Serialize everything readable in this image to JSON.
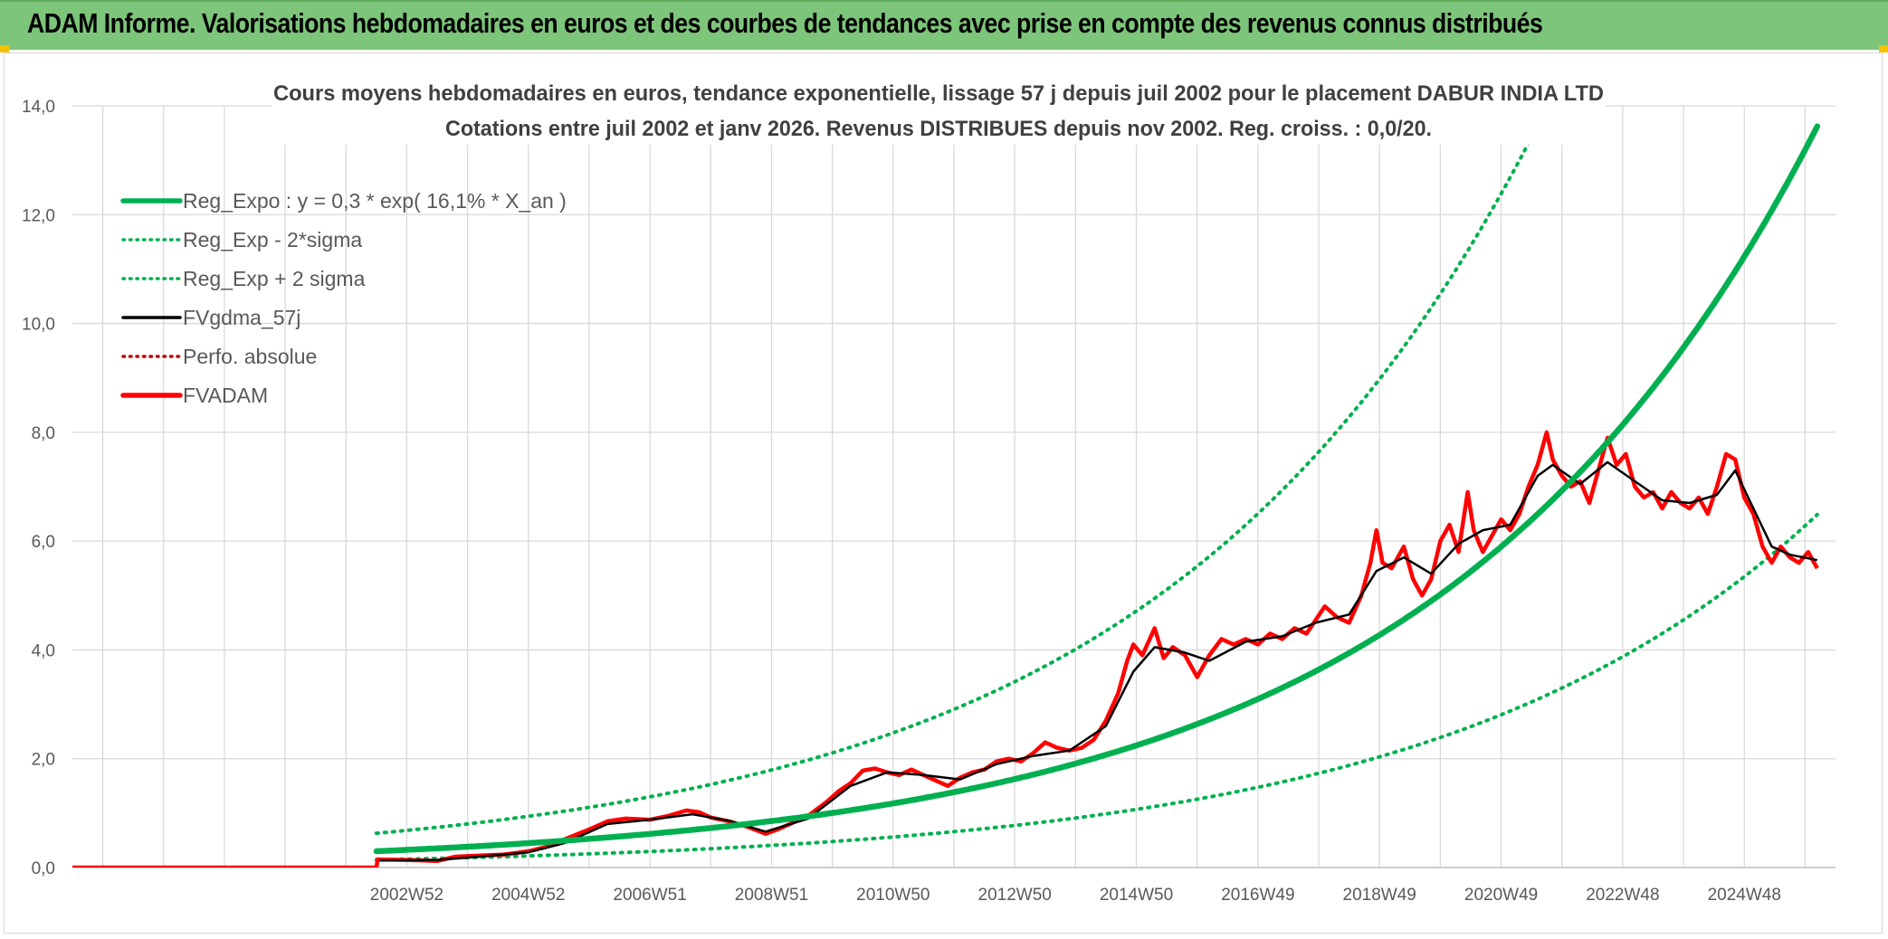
{
  "header": {
    "title": "ADAM Informe. Valorisations hebdomadaires en euros et des courbes de tendances avec prise en compte des revenus connus distribués"
  },
  "colors": {
    "header_bg": "#7dc57a",
    "reg_green": "#00b050",
    "gdma_black": "#000000",
    "adam_red": "#ff0000",
    "perfo_red": "#c00000",
    "grid": "#d9d9d9"
  },
  "chart_data": {
    "type": "line",
    "title_line1": "Cours moyens hebdomadaires en euros, tendance exponentielle, lissage 57 j depuis juil 2002 pour le placement DABUR INDIA LTD",
    "title_line2": "Cotations entre juil 2002 et janv 2026. Revenus DISTRIBUES depuis nov 2002. Reg. croiss. : 0,0/20.",
    "xlabel": "",
    "ylabel": "",
    "ylim": [
      0,
      14
    ],
    "y_ticks": [
      "0,0",
      "2,0",
      "4,0",
      "6,0",
      "8,0",
      "10,0",
      "12,0",
      "14,0"
    ],
    "x_range": [
      1997.5,
      2026.5
    ],
    "x_tick_labels": [
      "2002W52",
      "2004W52",
      "2006W51",
      "2008W51",
      "2010W50",
      "2012W50",
      "2014W50",
      "2016W49",
      "2018W49",
      "2020W49",
      "2022W48",
      "2024W48"
    ],
    "x_tick_years": [
      2003.0,
      2005.0,
      2007.0,
      2009.0,
      2011.0,
      2013.0,
      2015.0,
      2017.0,
      2019.0,
      2021.0,
      2023.0,
      2025.0
    ],
    "regression": {
      "a": 0.3,
      "rate": 0.161,
      "sigma_factor": 2.1,
      "start_year": 2002.5,
      "end_year": 2026.2
    },
    "legend": [
      {
        "label": "Reg_Expo : y = 0,3 * exp( 16,1% *  X_an )",
        "color": "#00b050",
        "style": "solid-thick"
      },
      {
        "label": "Reg_Exp - 2*sigma",
        "color": "#00b050",
        "style": "dotted"
      },
      {
        "label": "Reg_Exp + 2 sigma",
        "color": "#00b050",
        "style": "dotted"
      },
      {
        "label": "FVgdma_57j",
        "color": "#000000",
        "style": "solid"
      },
      {
        "label": "Perfo. absolue",
        "color": "#c00000",
        "style": "dotted"
      },
      {
        "label": "FVADAM",
        "color": "#ff0000",
        "style": "solid-thick"
      }
    ],
    "series": [
      {
        "name": "FVADAM",
        "points": [
          [
            1997.5,
            0.0
          ],
          [
            2002.5,
            0.0
          ],
          [
            2002.52,
            0.15
          ],
          [
            2003.0,
            0.14
          ],
          [
            2003.5,
            0.12
          ],
          [
            2003.8,
            0.2
          ],
          [
            2004.2,
            0.22
          ],
          [
            2004.6,
            0.24
          ],
          [
            2005.0,
            0.3
          ],
          [
            2005.3,
            0.38
          ],
          [
            2005.6,
            0.52
          ],
          [
            2006.0,
            0.7
          ],
          [
            2006.3,
            0.85
          ],
          [
            2006.6,
            0.9
          ],
          [
            2007.0,
            0.88
          ],
          [
            2007.3,
            0.95
          ],
          [
            2007.6,
            1.05
          ],
          [
            2007.8,
            1.02
          ],
          [
            2008.0,
            0.92
          ],
          [
            2008.3,
            0.85
          ],
          [
            2008.6,
            0.75
          ],
          [
            2008.9,
            0.62
          ],
          [
            2009.1,
            0.7
          ],
          [
            2009.3,
            0.8
          ],
          [
            2009.6,
            0.95
          ],
          [
            2009.9,
            1.2
          ],
          [
            2010.1,
            1.4
          ],
          [
            2010.3,
            1.55
          ],
          [
            2010.5,
            1.78
          ],
          [
            2010.7,
            1.82
          ],
          [
            2010.9,
            1.75
          ],
          [
            2011.1,
            1.7
          ],
          [
            2011.3,
            1.8
          ],
          [
            2011.5,
            1.7
          ],
          [
            2011.7,
            1.6
          ],
          [
            2011.9,
            1.5
          ],
          [
            2012.1,
            1.65
          ],
          [
            2012.3,
            1.75
          ],
          [
            2012.5,
            1.8
          ],
          [
            2012.7,
            1.95
          ],
          [
            2012.9,
            2.0
          ],
          [
            2013.1,
            1.95
          ],
          [
            2013.3,
            2.1
          ],
          [
            2013.5,
            2.3
          ],
          [
            2013.7,
            2.2
          ],
          [
            2013.9,
            2.15
          ],
          [
            2014.1,
            2.2
          ],
          [
            2014.3,
            2.35
          ],
          [
            2014.5,
            2.7
          ],
          [
            2014.7,
            3.2
          ],
          [
            2014.85,
            3.8
          ],
          [
            2014.95,
            4.1
          ],
          [
            2015.1,
            3.9
          ],
          [
            2015.3,
            4.4
          ],
          [
            2015.45,
            3.85
          ],
          [
            2015.6,
            4.05
          ],
          [
            2015.8,
            3.9
          ],
          [
            2016.0,
            3.5
          ],
          [
            2016.2,
            3.9
          ],
          [
            2016.4,
            4.2
          ],
          [
            2016.6,
            4.1
          ],
          [
            2016.8,
            4.2
          ],
          [
            2017.0,
            4.1
          ],
          [
            2017.2,
            4.3
          ],
          [
            2017.4,
            4.2
          ],
          [
            2017.6,
            4.4
          ],
          [
            2017.8,
            4.3
          ],
          [
            2017.95,
            4.55
          ],
          [
            2018.1,
            4.8
          ],
          [
            2018.3,
            4.6
          ],
          [
            2018.5,
            4.5
          ],
          [
            2018.7,
            5.0
          ],
          [
            2018.85,
            5.6
          ],
          [
            2018.95,
            6.2
          ],
          [
            2019.05,
            5.6
          ],
          [
            2019.2,
            5.5
          ],
          [
            2019.4,
            5.9
          ],
          [
            2019.55,
            5.3
          ],
          [
            2019.7,
            5.0
          ],
          [
            2019.85,
            5.3
          ],
          [
            2020.0,
            6.0
          ],
          [
            2020.15,
            6.3
          ],
          [
            2020.3,
            5.8
          ],
          [
            2020.45,
            6.9
          ],
          [
            2020.55,
            6.2
          ],
          [
            2020.7,
            5.8
          ],
          [
            2020.85,
            6.1
          ],
          [
            2021.0,
            6.4
          ],
          [
            2021.15,
            6.2
          ],
          [
            2021.3,
            6.5
          ],
          [
            2021.45,
            7.0
          ],
          [
            2021.6,
            7.4
          ],
          [
            2021.75,
            8.0
          ],
          [
            2021.85,
            7.5
          ],
          [
            2022.0,
            7.2
          ],
          [
            2022.15,
            7.0
          ],
          [
            2022.3,
            7.1
          ],
          [
            2022.45,
            6.7
          ],
          [
            2022.6,
            7.3
          ],
          [
            2022.75,
            7.9
          ],
          [
            2022.9,
            7.4
          ],
          [
            2023.05,
            7.6
          ],
          [
            2023.2,
            7.0
          ],
          [
            2023.35,
            6.8
          ],
          [
            2023.5,
            6.9
          ],
          [
            2023.65,
            6.6
          ],
          [
            2023.8,
            6.9
          ],
          [
            2023.95,
            6.7
          ],
          [
            2024.1,
            6.6
          ],
          [
            2024.25,
            6.8
          ],
          [
            2024.4,
            6.5
          ],
          [
            2024.55,
            7.0
          ],
          [
            2024.7,
            7.6
          ],
          [
            2024.85,
            7.5
          ],
          [
            2025.0,
            6.8
          ],
          [
            2025.15,
            6.5
          ],
          [
            2025.3,
            5.9
          ],
          [
            2025.45,
            5.6
          ],
          [
            2025.6,
            5.9
          ],
          [
            2025.75,
            5.7
          ],
          [
            2025.9,
            5.6
          ],
          [
            2026.05,
            5.8
          ],
          [
            2026.2,
            5.5
          ]
        ]
      },
      {
        "name": "FVgdma_57j",
        "points": [
          [
            2002.55,
            0.13
          ],
          [
            2003.5,
            0.14
          ],
          [
            2004.2,
            0.2
          ],
          [
            2005.0,
            0.28
          ],
          [
            2005.6,
            0.45
          ],
          [
            2006.3,
            0.8
          ],
          [
            2007.0,
            0.88
          ],
          [
            2007.7,
            0.98
          ],
          [
            2008.3,
            0.86
          ],
          [
            2008.9,
            0.66
          ],
          [
            2009.6,
            0.9
          ],
          [
            2010.3,
            1.5
          ],
          [
            2010.9,
            1.75
          ],
          [
            2011.5,
            1.7
          ],
          [
            2012.1,
            1.62
          ],
          [
            2012.7,
            1.9
          ],
          [
            2013.3,
            2.05
          ],
          [
            2013.9,
            2.15
          ],
          [
            2014.5,
            2.6
          ],
          [
            2014.95,
            3.6
          ],
          [
            2015.3,
            4.05
          ],
          [
            2015.8,
            3.95
          ],
          [
            2016.2,
            3.8
          ],
          [
            2016.8,
            4.15
          ],
          [
            2017.4,
            4.25
          ],
          [
            2017.95,
            4.5
          ],
          [
            2018.5,
            4.65
          ],
          [
            2018.95,
            5.45
          ],
          [
            2019.4,
            5.7
          ],
          [
            2019.85,
            5.4
          ],
          [
            2020.3,
            5.95
          ],
          [
            2020.7,
            6.2
          ],
          [
            2021.15,
            6.3
          ],
          [
            2021.6,
            7.2
          ],
          [
            2021.85,
            7.4
          ],
          [
            2022.3,
            7.05
          ],
          [
            2022.75,
            7.45
          ],
          [
            2023.2,
            7.1
          ],
          [
            2023.65,
            6.75
          ],
          [
            2024.1,
            6.7
          ],
          [
            2024.55,
            6.85
          ],
          [
            2024.85,
            7.3
          ],
          [
            2025.15,
            6.6
          ],
          [
            2025.45,
            5.9
          ],
          [
            2025.75,
            5.75
          ],
          [
            2026.2,
            5.65
          ]
        ]
      }
    ]
  }
}
